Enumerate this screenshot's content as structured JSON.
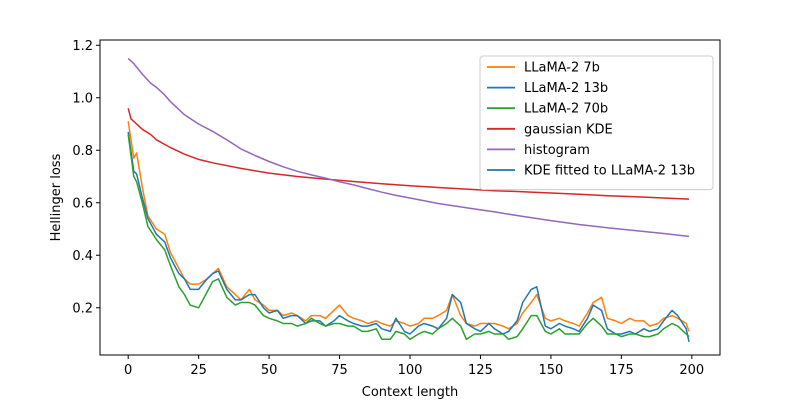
{
  "chart_data": {
    "type": "line",
    "title": "",
    "xlabel": "Context length",
    "ylabel": "Hellinger loss",
    "xlim": [
      -10,
      210
    ],
    "ylim": [
      0.02,
      1.22
    ],
    "xticks": [
      0,
      25,
      50,
      75,
      100,
      125,
      150,
      175,
      200
    ],
    "yticks": [
      0.2,
      0.4,
      0.6,
      0.8,
      1.0,
      1.2
    ],
    "grid": false,
    "legend_placement": "top-right",
    "series": [
      {
        "name": "LLaMA-2 7b",
        "color": "#ff7f0e",
        "x": [
          0,
          2,
          3,
          5,
          7,
          10,
          13,
          15,
          18,
          20,
          22,
          25,
          28,
          30,
          32,
          35,
          38,
          40,
          43,
          45,
          48,
          50,
          53,
          55,
          58,
          60,
          63,
          65,
          68,
          70,
          73,
          75,
          78,
          80,
          83,
          85,
          88,
          90,
          93,
          95,
          98,
          100,
          103,
          105,
          108,
          110,
          113,
          115,
          118,
          120,
          123,
          125,
          128,
          130,
          133,
          135,
          138,
          140,
          143,
          145,
          148,
          150,
          153,
          155,
          158,
          160,
          163,
          165,
          168,
          170,
          173,
          175,
          178,
          180,
          183,
          185,
          188,
          190,
          193,
          195,
          198,
          199
        ],
        "values": [
          0.91,
          0.77,
          0.79,
          0.66,
          0.55,
          0.5,
          0.48,
          0.41,
          0.35,
          0.31,
          0.29,
          0.29,
          0.31,
          0.33,
          0.35,
          0.28,
          0.25,
          0.23,
          0.27,
          0.23,
          0.21,
          0.19,
          0.19,
          0.17,
          0.18,
          0.17,
          0.15,
          0.17,
          0.17,
          0.16,
          0.19,
          0.21,
          0.17,
          0.16,
          0.15,
          0.14,
          0.15,
          0.14,
          0.13,
          0.15,
          0.14,
          0.13,
          0.14,
          0.16,
          0.16,
          0.17,
          0.19,
          0.25,
          0.17,
          0.14,
          0.13,
          0.14,
          0.14,
          0.14,
          0.13,
          0.12,
          0.14,
          0.18,
          0.22,
          0.25,
          0.16,
          0.15,
          0.16,
          0.15,
          0.14,
          0.13,
          0.18,
          0.22,
          0.24,
          0.16,
          0.15,
          0.14,
          0.16,
          0.15,
          0.15,
          0.13,
          0.14,
          0.16,
          0.17,
          0.16,
          0.14,
          0.11
        ]
      },
      {
        "name": "LLaMA-2 13b",
        "color": "#1f77b4",
        "x": [
          0,
          2,
          3,
          5,
          7,
          10,
          13,
          15,
          18,
          20,
          22,
          25,
          28,
          30,
          32,
          35,
          38,
          40,
          43,
          45,
          48,
          50,
          53,
          55,
          58,
          60,
          63,
          65,
          68,
          70,
          73,
          75,
          78,
          80,
          83,
          85,
          88,
          90,
          93,
          95,
          98,
          100,
          103,
          105,
          108,
          110,
          113,
          115,
          118,
          120,
          123,
          125,
          128,
          130,
          133,
          135,
          138,
          140,
          143,
          145,
          148,
          150,
          153,
          155,
          158,
          160,
          163,
          165,
          168,
          170,
          173,
          175,
          178,
          180,
          183,
          185,
          188,
          190,
          193,
          195,
          198,
          199
        ],
        "values": [
          0.87,
          0.72,
          0.71,
          0.62,
          0.54,
          0.48,
          0.45,
          0.39,
          0.33,
          0.31,
          0.27,
          0.27,
          0.31,
          0.33,
          0.34,
          0.27,
          0.23,
          0.23,
          0.25,
          0.25,
          0.2,
          0.18,
          0.19,
          0.16,
          0.17,
          0.17,
          0.14,
          0.15,
          0.15,
          0.13,
          0.15,
          0.17,
          0.15,
          0.14,
          0.13,
          0.13,
          0.14,
          0.12,
          0.11,
          0.16,
          0.11,
          0.1,
          0.13,
          0.14,
          0.13,
          0.12,
          0.16,
          0.25,
          0.22,
          0.14,
          0.12,
          0.11,
          0.14,
          0.12,
          0.1,
          0.11,
          0.15,
          0.22,
          0.27,
          0.28,
          0.13,
          0.12,
          0.14,
          0.13,
          0.12,
          0.11,
          0.16,
          0.21,
          0.19,
          0.12,
          0.1,
          0.1,
          0.11,
          0.1,
          0.12,
          0.11,
          0.12,
          0.15,
          0.19,
          0.17,
          0.12,
          0.07
        ]
      },
      {
        "name": "LLaMA-2 70b",
        "color": "#2ca02c",
        "x": [
          0,
          2,
          3,
          5,
          7,
          10,
          13,
          15,
          18,
          20,
          22,
          25,
          28,
          30,
          32,
          35,
          38,
          40,
          43,
          45,
          48,
          50,
          53,
          55,
          58,
          60,
          63,
          65,
          68,
          70,
          73,
          75,
          78,
          80,
          83,
          85,
          88,
          90,
          93,
          95,
          98,
          100,
          103,
          105,
          108,
          110,
          113,
          115,
          118,
          120,
          123,
          125,
          128,
          130,
          133,
          135,
          138,
          140,
          143,
          145,
          148,
          150,
          153,
          155,
          158,
          160,
          163,
          165,
          168,
          170,
          173,
          175,
          178,
          180,
          183,
          185,
          188,
          190,
          193,
          195,
          198,
          199
        ],
        "values": [
          0.86,
          0.7,
          0.68,
          0.6,
          0.51,
          0.46,
          0.42,
          0.36,
          0.28,
          0.25,
          0.21,
          0.2,
          0.26,
          0.3,
          0.31,
          0.24,
          0.21,
          0.22,
          0.22,
          0.21,
          0.17,
          0.16,
          0.15,
          0.14,
          0.14,
          0.13,
          0.14,
          0.16,
          0.14,
          0.13,
          0.14,
          0.14,
          0.13,
          0.13,
          0.11,
          0.11,
          0.12,
          0.08,
          0.08,
          0.11,
          0.1,
          0.08,
          0.1,
          0.11,
          0.1,
          0.12,
          0.14,
          0.16,
          0.13,
          0.08,
          0.1,
          0.1,
          0.11,
          0.1,
          0.1,
          0.08,
          0.09,
          0.12,
          0.17,
          0.17,
          0.11,
          0.1,
          0.12,
          0.1,
          0.1,
          0.1,
          0.14,
          0.16,
          0.13,
          0.1,
          0.1,
          0.09,
          0.1,
          0.1,
          0.09,
          0.09,
          0.1,
          0.12,
          0.14,
          0.13,
          0.1,
          0.09
        ]
      },
      {
        "name": "gaussian KDE",
        "color": "#d62728",
        "x": [
          0,
          1,
          3,
          5,
          8,
          10,
          15,
          20,
          25,
          30,
          40,
          50,
          60,
          70,
          80,
          90,
          100,
          110,
          120,
          130,
          140,
          150,
          160,
          170,
          180,
          190,
          199
        ],
        "values": [
          0.96,
          0.92,
          0.9,
          0.88,
          0.86,
          0.84,
          0.81,
          0.785,
          0.765,
          0.752,
          0.731,
          0.713,
          0.7,
          0.69,
          0.681,
          0.672,
          0.665,
          0.658,
          0.652,
          0.646,
          0.642,
          0.637,
          0.632,
          0.627,
          0.623,
          0.618,
          0.614
        ]
      },
      {
        "name": "histogram",
        "color": "#9467bd",
        "x": [
          0,
          2,
          5,
          8,
          10,
          13,
          15,
          18,
          20,
          25,
          30,
          35,
          40,
          45,
          50,
          55,
          60,
          65,
          70,
          75,
          80,
          85,
          90,
          95,
          100,
          110,
          120,
          130,
          140,
          150,
          160,
          170,
          180,
          190,
          199
        ],
        "values": [
          1.15,
          1.13,
          1.09,
          1.055,
          1.04,
          1.01,
          0.985,
          0.955,
          0.935,
          0.9,
          0.872,
          0.84,
          0.805,
          0.78,
          0.757,
          0.737,
          0.72,
          0.706,
          0.694,
          0.68,
          0.668,
          0.654,
          0.64,
          0.628,
          0.618,
          0.597,
          0.581,
          0.565,
          0.548,
          0.532,
          0.517,
          0.505,
          0.494,
          0.483,
          0.472
        ]
      }
    ],
    "legend": [
      {
        "name": "LLaMA-2 7b",
        "color": "#ff7f0e"
      },
      {
        "name": "LLaMA-2 13b",
        "color": "#1f77b4"
      },
      {
        "name": "LLaMA-2 70b",
        "color": "#2ca02c"
      },
      {
        "name": "gaussian KDE",
        "color": "#d62728"
      },
      {
        "name": "histogram",
        "color": "#9467bd"
      },
      {
        "name": "KDE fitted to LLaMA-2 13b",
        "color": "#1f77b4"
      }
    ]
  }
}
